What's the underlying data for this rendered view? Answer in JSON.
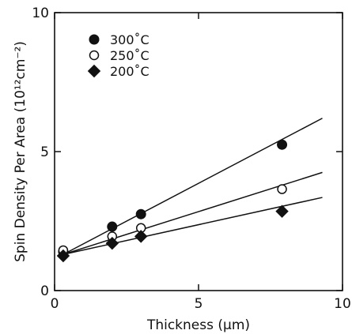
{
  "chart_data": {
    "type": "scatter",
    "title": "",
    "xlabel": "Thickness (μm)",
    "ylabel": "Spin Density Per Area (10¹²cm⁻²)",
    "xlim": [
      0,
      10
    ],
    "ylim": [
      0,
      10
    ],
    "xticks": [
      "0",
      "5",
      "10"
    ],
    "yticks": [
      "0",
      "5",
      "10"
    ],
    "legend_position": "top-left",
    "series": [
      {
        "name": "300˚C",
        "marker": "filled-circle",
        "points": [
          [
            0.3,
            1.4
          ],
          [
            2.0,
            2.3
          ],
          [
            3.0,
            2.75
          ],
          [
            7.9,
            5.25
          ]
        ],
        "fit_line": [
          [
            0.3,
            1.3
          ],
          [
            9.3,
            6.2
          ]
        ]
      },
      {
        "name": "250˚C",
        "marker": "open-circle",
        "points": [
          [
            0.3,
            1.45
          ],
          [
            2.0,
            1.95
          ],
          [
            3.0,
            2.25
          ],
          [
            7.9,
            3.65
          ]
        ],
        "fit_line": [
          [
            0.3,
            1.3
          ],
          [
            9.3,
            4.25
          ]
        ]
      },
      {
        "name": "200˚C",
        "marker": "filled-diamond",
        "points": [
          [
            0.3,
            1.25
          ],
          [
            2.0,
            1.7
          ],
          [
            3.0,
            1.95
          ],
          [
            7.9,
            2.85
          ]
        ],
        "fit_line": [
          [
            0.3,
            1.3
          ],
          [
            9.3,
            3.35
          ]
        ]
      }
    ]
  }
}
